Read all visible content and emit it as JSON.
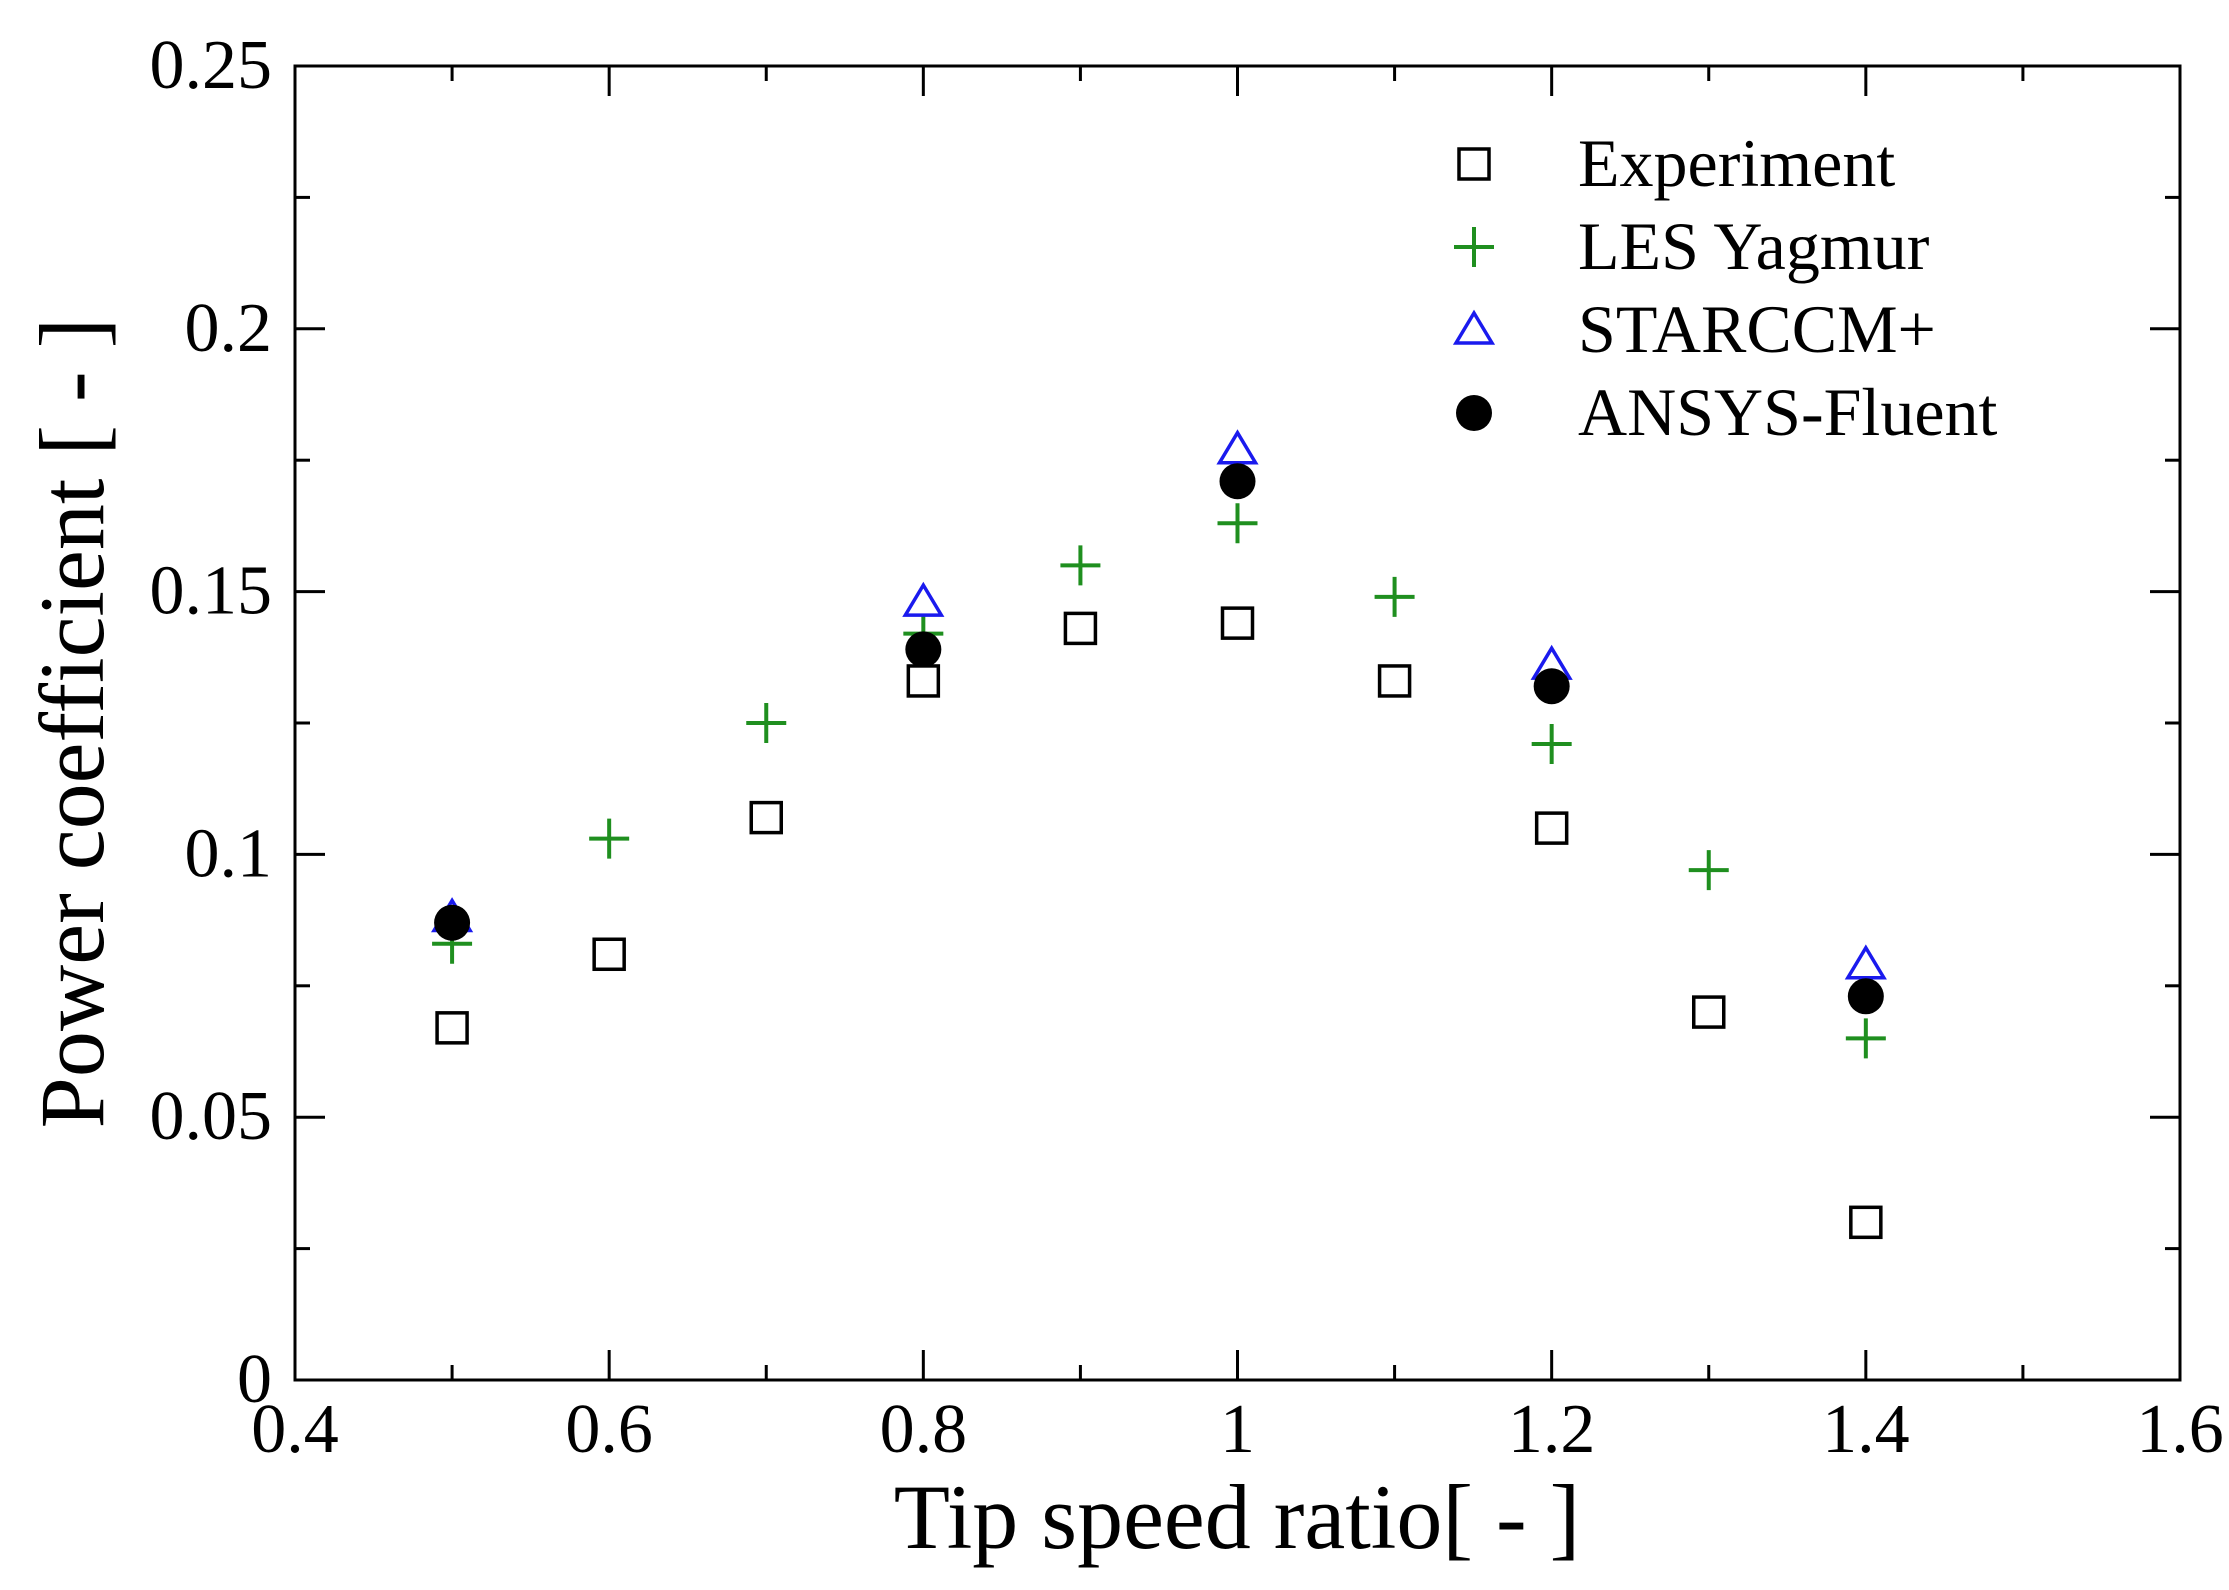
{
  "chart_data": {
    "type": "scatter",
    "title": "",
    "xlabel": "Tip speed ratio[ - ]",
    "ylabel": "Power coefficient [ - ]",
    "xlim": [
      0.4,
      1.6
    ],
    "ylim": [
      0,
      0.25
    ],
    "xticks": [
      0.4,
      0.6,
      0.8,
      1.0,
      1.2,
      1.4,
      1.6
    ],
    "xtick_labels": [
      "0.4",
      "0.6",
      "0.8",
      "1",
      "1.2",
      "1.4",
      "1.6"
    ],
    "yticks": [
      0,
      0.05,
      0.1,
      0.15,
      0.2,
      0.25
    ],
    "ytick_labels": [
      "0",
      "0.05",
      "0.1",
      "0.15",
      "0.2",
      "0.25"
    ],
    "grid": false,
    "legend_position": "top-right",
    "series": [
      {
        "name": "Experiment",
        "marker": "square-open",
        "color": "#000000",
        "x": [
          0.5,
          0.6,
          0.7,
          0.8,
          0.9,
          1.0,
          1.1,
          1.2,
          1.3,
          1.4
        ],
        "y": [
          0.067,
          0.081,
          0.107,
          0.133,
          0.143,
          0.144,
          0.133,
          0.105,
          0.07,
          0.03
        ]
      },
      {
        "name": "LES Yagmur",
        "marker": "plus",
        "color": "#1f8f1f",
        "x": [
          0.5,
          0.6,
          0.7,
          0.8,
          0.9,
          1.0,
          1.1,
          1.2,
          1.3,
          1.4
        ],
        "y": [
          0.083,
          0.103,
          0.125,
          0.142,
          0.155,
          0.163,
          0.149,
          0.121,
          0.097,
          0.065
        ]
      },
      {
        "name": "STARCCM+",
        "marker": "triangle-open",
        "color": "#1a1aee",
        "x": [
          0.5,
          0.8,
          1.0,
          1.2,
          1.4
        ],
        "y": [
          0.088,
          0.148,
          0.177,
          0.136,
          0.079
        ]
      },
      {
        "name": "ANSYS-Fluent",
        "marker": "circle-filled",
        "color": "#000000",
        "x": [
          0.5,
          0.8,
          1.0,
          1.2,
          1.4
        ],
        "y": [
          0.087,
          0.139,
          0.171,
          0.132,
          0.073
        ]
      }
    ]
  }
}
